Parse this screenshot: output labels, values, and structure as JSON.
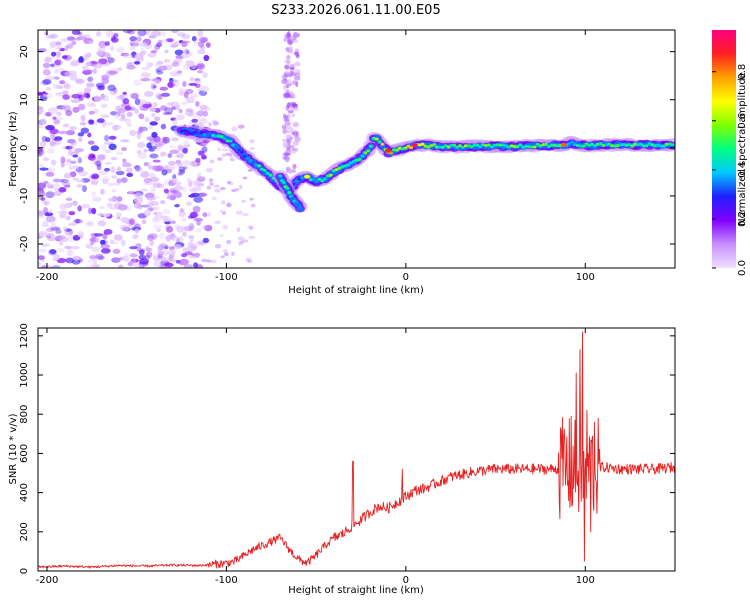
{
  "title": "S233.2026.061.11.00.E05",
  "chart_data": [
    {
      "type": "heatmap",
      "name": "spectrogram",
      "xlabel": "Height of straight line (km)",
      "ylabel": "Frequency (Hz)",
      "xlim": [
        -205,
        150
      ],
      "ylim": [
        -25,
        24.5
      ],
      "xticks": [
        -200,
        -100,
        0,
        100
      ],
      "yticks": [
        -20,
        -10,
        0,
        10,
        20
      ],
      "colorbar": {
        "label": "Normalized spectral amplitude",
        "range": [
          0,
          0.97
        ],
        "ticks": [
          0.0,
          0.2,
          0.4,
          0.6,
          0.8
        ],
        "tick_labels": [
          "0.0",
          "0.2",
          "0.4",
          "0.6",
          "0.8"
        ],
        "colors": [
          "#f0e0ff",
          "#c890ff",
          "#8000ff",
          "#2020ff",
          "#00c8ff",
          "#00ff80",
          "#80ff00",
          "#ffff00",
          "#ffa000",
          "#ff2020",
          "#ff0080"
        ]
      },
      "ridge_x": [
        -125,
        -115,
        -105,
        -98,
        -92,
        -85,
        -80,
        -75,
        -70,
        -65,
        -60,
        -55,
        -50,
        -45,
        -40,
        -35,
        -30,
        -25,
        -20,
        -17,
        -15,
        -12,
        -10,
        -5,
        0,
        5,
        10,
        20,
        30,
        40,
        50,
        60,
        70,
        80,
        88,
        92,
        95,
        100,
        105,
        110,
        120,
        130,
        140,
        150
      ],
      "ridge_y": [
        3.5,
        3,
        2.5,
        1.5,
        -1,
        -3,
        -4.5,
        -6,
        -8,
        -9,
        -6.5,
        -6,
        -7,
        -6.5,
        -5,
        -4,
        -3,
        -2,
        0,
        2.5,
        1.5,
        0,
        -1,
        -0.5,
        0,
        0.5,
        0.5,
        0.3,
        0.2,
        0.3,
        0.4,
        0.3,
        0.4,
        0.5,
        0.5,
        1.0,
        0.8,
        0.5,
        0.5,
        0.6,
        0.6,
        0.6,
        0.6,
        0.6
      ],
      "ridge_amp": [
        0.25,
        0.3,
        0.45,
        0.5,
        0.3,
        0.4,
        0.45,
        0.5,
        0.3,
        0.25,
        0.35,
        0.4,
        0.45,
        0.5,
        0.55,
        0.5,
        0.45,
        0.5,
        0.55,
        0.6,
        0.5,
        0.7,
        0.8,
        0.6,
        0.6,
        0.85,
        0.6,
        0.5,
        0.55,
        0.5,
        0.5,
        0.55,
        0.5,
        0.55,
        0.5,
        0.4,
        0.45,
        0.55,
        0.5,
        0.5,
        0.5,
        0.5,
        0.5,
        0.5
      ],
      "branch_x": [
        -70,
        -67,
        -64,
        -61,
        -59
      ],
      "branch_y": [
        -6,
        -8,
        -10,
        -11.5,
        -12.5
      ],
      "branch_amp": [
        0.4,
        0.45,
        0.45,
        0.4,
        0.35
      ]
    },
    {
      "type": "line",
      "name": "snr",
      "xlabel": "Height of straight line (km)",
      "ylabel": "SNR (10 * v/v)",
      "xlim": [
        -205,
        150
      ],
      "ylim": [
        0,
        1240
      ],
      "xticks": [
        -200,
        -100,
        0,
        100
      ],
      "yticks": [
        0,
        200,
        400,
        600,
        800,
        1000,
        1200
      ],
      "color": "#e82020",
      "x": [
        -205,
        -190,
        -175,
        -160,
        -145,
        -130,
        -115,
        -100,
        -95,
        -90,
        -85,
        -80,
        -75,
        -70,
        -65,
        -60,
        -55,
        -50,
        -45,
        -40,
        -35,
        -30,
        -25,
        -20,
        -15,
        -10,
        -5,
        0,
        5,
        10,
        15,
        20,
        25,
        30,
        40,
        50,
        60,
        70,
        80,
        85,
        90,
        95,
        98,
        100,
        102,
        105,
        110,
        120,
        130,
        140,
        150
      ],
      "y": [
        20,
        25,
        20,
        28,
        25,
        30,
        28,
        40,
        50,
        80,
        110,
        130,
        150,
        170,
        110,
        60,
        40,
        80,
        130,
        170,
        190,
        230,
        260,
        300,
        330,
        320,
        350,
        380,
        410,
        420,
        440,
        460,
        480,
        490,
        510,
        520,
        520,
        520,
        520,
        520,
        530,
        520,
        520,
        500,
        530,
        520,
        530,
        520,
        520,
        520,
        530
      ],
      "spikes": [
        {
          "x": -29.5,
          "y": 560
        },
        {
          "x": -2,
          "y": 520
        },
        {
          "x": 88,
          "y": 690
        },
        {
          "x": 92,
          "y": 790
        },
        {
          "x": 95,
          "y": 1010
        },
        {
          "x": 97,
          "y": 1130
        },
        {
          "x": 98.5,
          "y": 1220
        },
        {
          "x": 99.5,
          "y": 50
        },
        {
          "x": 101,
          "y": 820
        },
        {
          "x": 103,
          "y": 200
        },
        {
          "x": 105,
          "y": 760
        }
      ]
    }
  ]
}
